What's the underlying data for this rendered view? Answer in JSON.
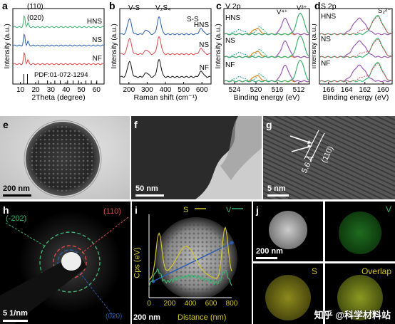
{
  "figure": {
    "panels": {
      "a": {
        "letter": "a",
        "peaks": [
          "(110)",
          "(020)"
        ],
        "series": [
          "HNS",
          "NS",
          "NF"
        ],
        "ref": "PDF:01-072-1294",
        "xlabel": "2Theta (degree)",
        "ylabel": "Intensity (a.u.)",
        "xticks": [
          "10",
          "20",
          "30",
          "40",
          "50",
          "60"
        ]
      },
      "b": {
        "letter": "b",
        "bands": [
          "V-S",
          "V₂S₄",
          "S-S"
        ],
        "series": [
          "HNS",
          "NS",
          "NF"
        ],
        "xlabel": "Raman shift (cm⁻¹)",
        "ylabel": "Intensity (a.u.)",
        "xticks": [
          "200",
          "300",
          "400",
          "500",
          "600"
        ]
      },
      "c": {
        "letter": "c",
        "title": "V 2p",
        "labels": [
          "V⁴⁺",
          "V³⁺"
        ],
        "series": [
          "HNS",
          "NS",
          "NF"
        ],
        "xlabel": "Binding energy (eV)",
        "ylabel": "Intensity (a.u.)",
        "xticks": [
          "524",
          "520",
          "516",
          "512"
        ]
      },
      "d": {
        "letter": "d",
        "title": "S 2p",
        "labels": [
          "S₂²⁻"
        ],
        "series": [
          "HNS",
          "NS",
          "NF"
        ],
        "xlabel": "Binding energy (eV)",
        "ylabel": "Intensity (a.u.)",
        "xticks": [
          "166",
          "164",
          "162",
          "160"
        ]
      },
      "e": {
        "letter": "e",
        "scale": "200 nm"
      },
      "f": {
        "letter": "f",
        "scale": "50 nm"
      },
      "g": {
        "letter": "g",
        "scale": "5 nm",
        "dspacing": "5.6 Å",
        "plane": "(110)"
      },
      "h": {
        "letter": "h",
        "scale": "5 1/nm",
        "rings": [
          "(-202)",
          "(110)",
          "(020)"
        ]
      },
      "i": {
        "letter": "i",
        "legend": [
          "S",
          "V"
        ],
        "scale": "200 nm",
        "xlabel": "Distance (nm)",
        "ylabel": "Cps (eV)",
        "xticks": [
          "0",
          "200",
          "400",
          "600",
          "800"
        ]
      },
      "j": {
        "letter": "j",
        "scale": "200 nm",
        "maps": [
          "V",
          "S",
          "Overlap"
        ]
      }
    },
    "watermark": "知乎 @科学材料站",
    "colors": {
      "green": "#3cb371",
      "blue": "#2a5db0",
      "red": "#e0474c",
      "black": "#111111",
      "purple": "#9b59b6",
      "orange": "#e08a1e",
      "teal": "#20a39e",
      "yellow": "#d4c82a"
    }
  },
  "chart_data": [
    {
      "type": "line",
      "panel": "a",
      "xlabel": "2Theta (degree)",
      "ylabel": "Intensity (a.u.)",
      "xlim": [
        10,
        60
      ],
      "series": [
        {
          "name": "HNS",
          "peaks_x": [
            15.7,
            17.1
          ]
        },
        {
          "name": "NS",
          "peaks_x": [
            15.7,
            17.1
          ]
        },
        {
          "name": "NF",
          "peaks_x": [
            15.7,
            17.1
          ]
        }
      ],
      "reference": {
        "name": "PDF:01-072-1294",
        "x": [
          15.7,
          17.1,
          24,
          29,
          33,
          36,
          41,
          44,
          47,
          52,
          55,
          58
        ]
      }
    },
    {
      "type": "line",
      "panel": "b",
      "xlabel": "Raman shift (cm⁻¹)",
      "ylabel": "Intensity (a.u.)",
      "xlim": [
        150,
        600
      ],
      "series": [
        {
          "name": "HNS",
          "peaks_x": [
            195,
            280,
            345,
            555
          ]
        },
        {
          "name": "NS",
          "peaks_x": [
            195,
            280,
            345,
            555
          ]
        },
        {
          "name": "NF",
          "peaks_x": [
            195,
            280,
            345,
            555
          ]
        }
      ]
    },
    {
      "type": "line",
      "panel": "c",
      "xlabel": "Binding energy (eV)",
      "ylabel": "Intensity (a.u.)",
      "xlim": [
        526,
        510
      ],
      "series": [
        {
          "name": "HNS"
        },
        {
          "name": "NS"
        },
        {
          "name": "NF"
        }
      ]
    },
    {
      "type": "line",
      "panel": "d",
      "xlabel": "Binding energy (eV)",
      "ylabel": "Intensity (a.u.)",
      "xlim": [
        166,
        159.5
      ],
      "series": [
        {
          "name": "HNS"
        },
        {
          "name": "NS"
        },
        {
          "name": "NF"
        }
      ]
    },
    {
      "type": "line",
      "panel": "i",
      "xlabel": "Distance (nm)",
      "ylabel": "Cps (eV)",
      "xlim": [
        0,
        850
      ],
      "series": [
        {
          "name": "S"
        },
        {
          "name": "V"
        }
      ]
    }
  ]
}
